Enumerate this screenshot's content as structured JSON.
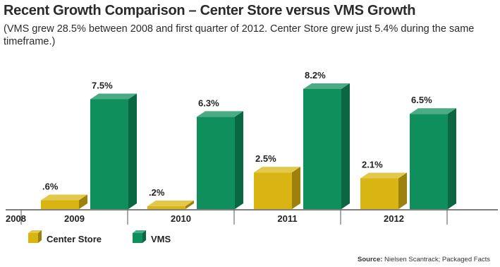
{
  "title": "Recent Growth Comparison – Center Store versus VMS Growth",
  "subtitle": "(VMS grew 28.5% between 2008 and first quarter of 2012. Center Store grew just 5.4% during the same timeframe.)",
  "source_label": "Source:",
  "source_text": "Nielsen Scantrack; Packaged Facts",
  "colors": {
    "center_store": "#d8b512",
    "vms": "#0e8f5c"
  },
  "chart_data": {
    "type": "bar",
    "style": "3d",
    "start_label": "2008",
    "categories": [
      "2009",
      "2010",
      "2011",
      "2012"
    ],
    "series": [
      {
        "name": "Center Store",
        "values": [
          0.6,
          0.2,
          2.5,
          2.1
        ],
        "labels": [
          ".6%",
          ".2%",
          "2.5%",
          "2.1%"
        ]
      },
      {
        "name": "VMS",
        "values": [
          7.5,
          6.3,
          8.2,
          6.5
        ],
        "labels": [
          "7.5%",
          "6.3%",
          "8.2%",
          "6.5%"
        ]
      }
    ],
    "ylim": [
      0,
      8.2
    ],
    "legend_position": "bottom-left",
    "grid": false
  }
}
